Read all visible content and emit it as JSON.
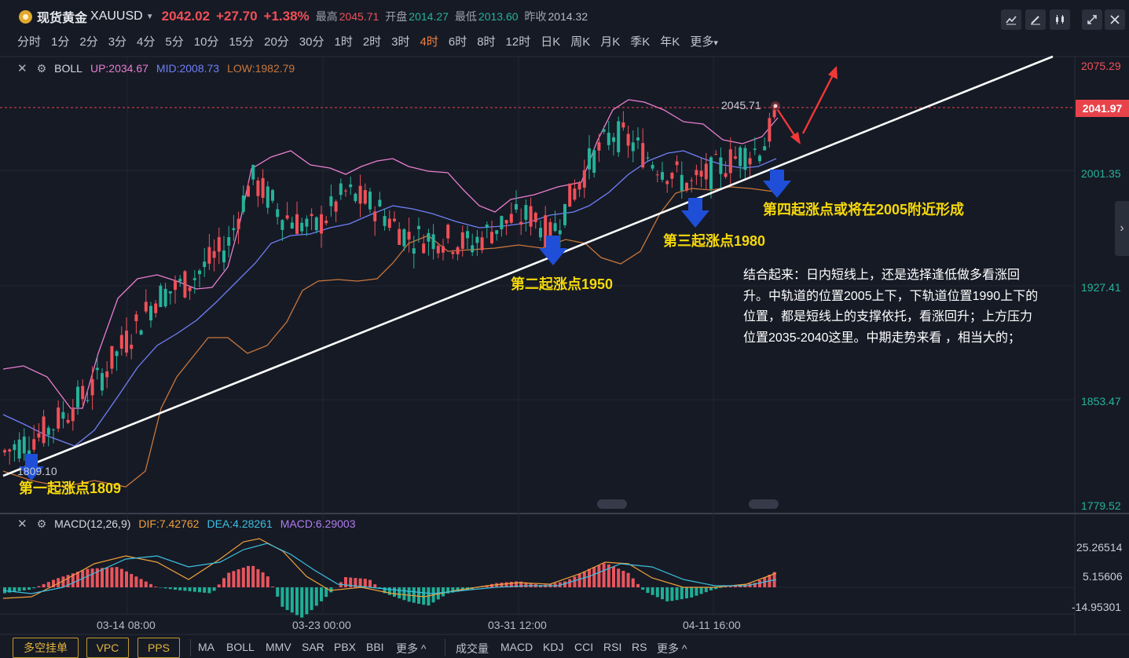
{
  "header": {
    "name": "现货黄金",
    "symbol": "XAUUSD",
    "price": "2042.02",
    "change": "+27.70",
    "change_pct": "+1.38%",
    "high_label": "最高",
    "high": "2045.71",
    "open_label": "开盘",
    "open": "2014.27",
    "low_label": "最低",
    "low": "2013.60",
    "prev_label": "昨收",
    "prev": "2014.32"
  },
  "timeframes": [
    "分时",
    "1分",
    "2分",
    "3分",
    "4分",
    "5分",
    "10分",
    "15分",
    "20分",
    "30分",
    "1时",
    "2时",
    "3时",
    "4时",
    "6时",
    "8时",
    "12时",
    "日K",
    "周K",
    "月K",
    "季K",
    "年K",
    "更多"
  ],
  "active_timeframe": "4时",
  "boll_legend": {
    "name": "BOLL",
    "up": "UP:2034.67",
    "mid": "MID:2008.73",
    "low": "LOW:1982.79"
  },
  "macd_legend": {
    "name": "MACD(12,26,9)",
    "dif": "DIF:7.42762",
    "dea": "DEA:4.28261",
    "macd": "MACD:6.29003"
  },
  "price_axis": [
    "2075.29",
    "2001.35",
    "1927.41",
    "1853.47",
    "1779.52"
  ],
  "current_price_tag": "2041.97",
  "macd_axis": [
    "25.26514",
    "5.15606",
    "-14.95301"
  ],
  "time_axis": [
    "03-14 08:00",
    "03-23 00:00",
    "03-31 12:00",
    "04-11 16:00"
  ],
  "labels": {
    "high_mark": "2045.71",
    "low_mark": "1809.10"
  },
  "annotations": {
    "a1": "第一起涨点1809",
    "a2": "第二起涨点1950",
    "a3": "第三起涨点1980",
    "a4": "第四起涨点或将在2005附近形成",
    "note": "结合起来：日内短线上，还是选择逢低做多看涨回升。中轨道的位置2005上下，下轨道位置1990上下的位置，都是短线上的支撑依托，看涨回升；上方压力位置2035-2040这里。中期走势来看 ，相当大的；"
  },
  "bottom": {
    "buttons": [
      "多空挂单",
      "VPC",
      "PPS"
    ],
    "main_indicators": [
      "MA",
      "BOLL",
      "MMV",
      "SAR",
      "PBX",
      "BBI",
      "更多 ^"
    ],
    "sub_indicators": [
      "成交量",
      "MACD",
      "KDJ",
      "CCI",
      "RSI",
      "RS",
      "更多 ^"
    ]
  },
  "colors": {
    "up": "#f05058",
    "down": "#26b29a",
    "boll_up": "#e87fd0",
    "boll_mid": "#6f7ff5",
    "boll_low": "#c8773c",
    "trendline": "#ffffff",
    "arrow_blue": "#1f4fd8",
    "note_yellow": "#f5d80a"
  }
}
